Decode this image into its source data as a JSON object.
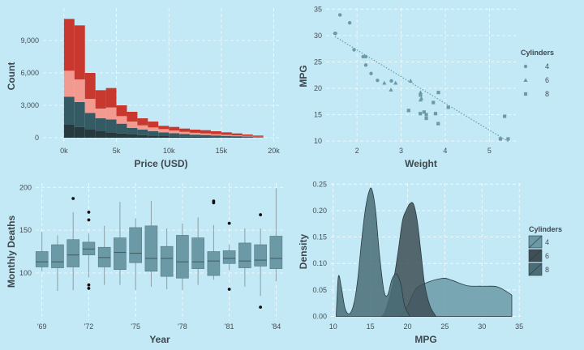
{
  "chart_data": [
    {
      "type": "bar",
      "subtype": "stacked-histogram",
      "xlabel": "Price (USD)",
      "ylabel": "Count",
      "xlim": [
        -2000,
        20500
      ],
      "ylim": [
        -600,
        12000
      ],
      "x_ticks": [
        0,
        5000,
        10000,
        15000,
        20000
      ],
      "x_tick_labels": [
        "0k",
        "5k",
        "10k",
        "15k",
        "20k"
      ],
      "y_ticks": [
        0,
        3000,
        6000,
        9000
      ],
      "y_tick_labels": [
        "0",
        "3,000",
        "6,000",
        "9,000"
      ],
      "bins": [
        0,
        1000,
        2000,
        3000,
        4000,
        5000,
        6000,
        7000,
        8000,
        9000,
        10000,
        11000,
        12000,
        13000,
        14000,
        15000,
        16000,
        17000,
        18000,
        19000
      ],
      "bin_width": 1000,
      "series": [
        {
          "color": "#27393d",
          "values": [
            1200,
            1000,
            800,
            600,
            500,
            400,
            300,
            250,
            200,
            150,
            120,
            100,
            80,
            70,
            60,
            50,
            40,
            30,
            20,
            0
          ]
        },
        {
          "color": "#345b63",
          "values": [
            2600,
            2300,
            1500,
            1200,
            1200,
            900,
            600,
            500,
            400,
            350,
            300,
            250,
            200,
            180,
            150,
            120,
            100,
            80,
            40,
            0
          ]
        },
        {
          "color": "#f29a8f",
          "values": [
            2400,
            2100,
            1300,
            900,
            1100,
            700,
            600,
            400,
            350,
            300,
            250,
            200,
            180,
            150,
            120,
            100,
            80,
            60,
            30,
            0
          ]
        },
        {
          "color": "#c8382e",
          "values": [
            4800,
            5000,
            2400,
            1700,
            1800,
            1000,
            900,
            650,
            550,
            300,
            330,
            300,
            290,
            300,
            270,
            230,
            180,
            130,
            110,
            0
          ]
        }
      ]
    },
    {
      "type": "scatter",
      "xlabel": "Weight",
      "ylabel": "MPG",
      "xlim": [
        1.3,
        5.6
      ],
      "ylim": [
        9.4,
        35.2
      ],
      "x_ticks": [
        2,
        3,
        4,
        5
      ],
      "y_ticks": [
        10,
        15,
        20,
        25,
        30,
        35
      ],
      "trend_line": {
        "from": [
          1.5,
          29.8
        ],
        "to": [
          5.45,
          9.8
        ],
        "color": "#6b9aa6"
      },
      "legend": {
        "title": "Cylinders",
        "entries": [
          "4",
          "6",
          "8"
        ],
        "position": "right"
      },
      "point_color": "#6b9aa6",
      "series": [
        {
          "name": "4",
          "shape": "circle",
          "x": [
            2.32,
            2.2,
            1.615,
            1.835,
            2.465,
            1.935,
            2.14,
            1.513,
            2.78,
            2.2,
            1.5
          ],
          "y": [
            22.8,
            24.4,
            33.9,
            32.4,
            21.5,
            27.3,
            26.0,
            30.4,
            21.4,
            26.0,
            30.4
          ]
        },
        {
          "name": "6",
          "shape": "triangle",
          "x": [
            2.62,
            2.875,
            3.215,
            3.46,
            3.44,
            3.44,
            2.77
          ],
          "y": [
            21.0,
            21.0,
            21.4,
            18.1,
            19.2,
            17.8,
            19.7
          ]
        },
        {
          "name": "8",
          "shape": "square",
          "x": [
            3.44,
            3.57,
            4.07,
            3.73,
            3.78,
            5.25,
            5.424,
            5.345,
            3.52,
            3.435,
            3.84,
            3.845,
            3.17,
            3.57
          ],
          "y": [
            18.7,
            14.3,
            16.4,
            17.3,
            15.2,
            10.4,
            10.4,
            14.7,
            15.5,
            15.2,
            13.3,
            19.2,
            15.8,
            15.0
          ]
        }
      ]
    },
    {
      "type": "box",
      "xlabel": "Year",
      "ylabel": "Monthly Deaths",
      "xlim": [
        1968.6,
        1984.5
      ],
      "ylim": [
        45,
        205
      ],
      "x_ticks": [
        1969,
        1972,
        1975,
        1978,
        1981,
        1984
      ],
      "x_tick_labels": [
        "'69",
        "'72",
        "'75",
        "'78",
        "'81",
        "'84"
      ],
      "y_ticks": [
        100,
        150,
        200
      ],
      "box_color": "#6b9aa6",
      "boxes": [
        {
          "x": 1969,
          "whisker_low": 102,
          "q1": 107,
          "median": 113,
          "q3": 125,
          "whisker_high": 148,
          "outliers": []
        },
        {
          "x": 1970,
          "whisker_low": 79,
          "q1": 106,
          "median": 113,
          "q3": 133,
          "whisker_high": 144,
          "outliers": []
        },
        {
          "x": 1971,
          "whisker_low": 80,
          "q1": 107,
          "median": 121,
          "q3": 139,
          "whisker_high": 171,
          "outliers": [
            187
          ]
        },
        {
          "x": 1972,
          "whisker_low": 95,
          "q1": 121,
          "median": 128,
          "q3": 136,
          "whisker_high": 146,
          "outliers": [
            171,
            162,
            86,
            82
          ]
        },
        {
          "x": 1973,
          "whisker_low": 86,
          "q1": 107,
          "median": 118,
          "q3": 130,
          "whisker_high": 155,
          "outliers": []
        },
        {
          "x": 1974,
          "whisker_low": 86,
          "q1": 104,
          "median": 124,
          "q3": 141,
          "whisker_high": 183,
          "outliers": []
        },
        {
          "x": 1975,
          "whisker_low": 80,
          "q1": 112,
          "median": 123,
          "q3": 153,
          "whisker_high": 164,
          "outliers": []
        },
        {
          "x": 1976,
          "whisker_low": 84,
          "q1": 102,
          "median": 117,
          "q3": 155,
          "whisker_high": 184,
          "outliers": []
        },
        {
          "x": 1977,
          "whisker_low": 81,
          "q1": 96,
          "median": 117,
          "q3": 131,
          "whisker_high": 152,
          "outliers": []
        },
        {
          "x": 1978,
          "whisker_low": 80,
          "q1": 94,
          "median": 113,
          "q3": 144,
          "whisker_high": 158,
          "outliers": []
        },
        {
          "x": 1979,
          "whisker_low": 86,
          "q1": 105,
          "median": 113,
          "q3": 141,
          "whisker_high": 165,
          "outliers": []
        },
        {
          "x": 1980,
          "whisker_low": 92,
          "q1": 97,
          "median": 114,
          "q3": 125,
          "whisker_high": 156,
          "outliers": [
            184,
            182
          ]
        },
        {
          "x": 1981,
          "whisker_low": 103,
          "q1": 111,
          "median": 117,
          "q3": 126,
          "whisker_high": 133,
          "outliers": [
            158,
            81
          ]
        },
        {
          "x": 1982,
          "whisker_low": 84,
          "q1": 106,
          "median": 114,
          "q3": 135,
          "whisker_high": 152,
          "outliers": []
        },
        {
          "x": 1983,
          "whisker_low": 73,
          "q1": 108,
          "median": 115,
          "q3": 133,
          "whisker_high": 152,
          "outliers": [
            168,
            60
          ]
        },
        {
          "x": 1984,
          "whisker_low": 90,
          "q1": 105,
          "median": 117,
          "q3": 143,
          "whisker_high": 199,
          "outliers": []
        }
      ]
    },
    {
      "type": "area",
      "subtype": "density",
      "xlabel": "MPG",
      "ylabel": "Density",
      "xlim": [
        9.7,
        35.2
      ],
      "ylim": [
        -0.007,
        0.252
      ],
      "x_ticks": [
        10,
        15,
        20,
        25,
        30,
        35
      ],
      "y_ticks": [
        0.0,
        0.05,
        0.1,
        0.15,
        0.2,
        0.25
      ],
      "y_tick_labels": [
        "0.00",
        "0.05",
        "0.10",
        "0.15",
        "0.20",
        "0.25"
      ],
      "legend": {
        "title": "Cylinders",
        "entries": [
          "4",
          "6",
          "8"
        ],
        "position": "right"
      },
      "series": [
        {
          "name": "4",
          "color": "#6b9aa6",
          "x": [
            19.0,
            20,
            21,
            22,
            23,
            24,
            25,
            26,
            28,
            30,
            32,
            33.5,
            34
          ],
          "y": [
            0.0,
            0.02,
            0.05,
            0.06,
            0.066,
            0.07,
            0.072,
            0.068,
            0.058,
            0.057,
            0.056,
            0.045,
            0.04
          ]
        },
        {
          "name": "6",
          "color": "#3e4f56",
          "x": [
            16.5,
            17,
            18,
            18.7,
            19.3,
            19.8,
            20.3,
            20.8,
            21.3,
            21.8,
            22.3,
            23,
            23.8
          ],
          "y": [
            0.0,
            0.01,
            0.06,
            0.12,
            0.18,
            0.2,
            0.213,
            0.212,
            0.18,
            0.12,
            0.06,
            0.02,
            0.0
          ]
        },
        {
          "name": "8",
          "color": "#4a6d77",
          "x": [
            10.4,
            10.7,
            11.1,
            11.6,
            12.2,
            12.8,
            13.3,
            13.8,
            14.3,
            14.8,
            15.2,
            15.7,
            16.2,
            16.8,
            17.3,
            17.9,
            18.5,
            19.1,
            19.6,
            20.3
          ],
          "y": [
            0.0,
            0.075,
            0.055,
            0.015,
            0.005,
            0.025,
            0.07,
            0.14,
            0.2,
            0.235,
            0.24,
            0.2,
            0.12,
            0.05,
            0.04,
            0.07,
            0.08,
            0.06,
            0.02,
            0.0
          ]
        }
      ]
    }
  ]
}
